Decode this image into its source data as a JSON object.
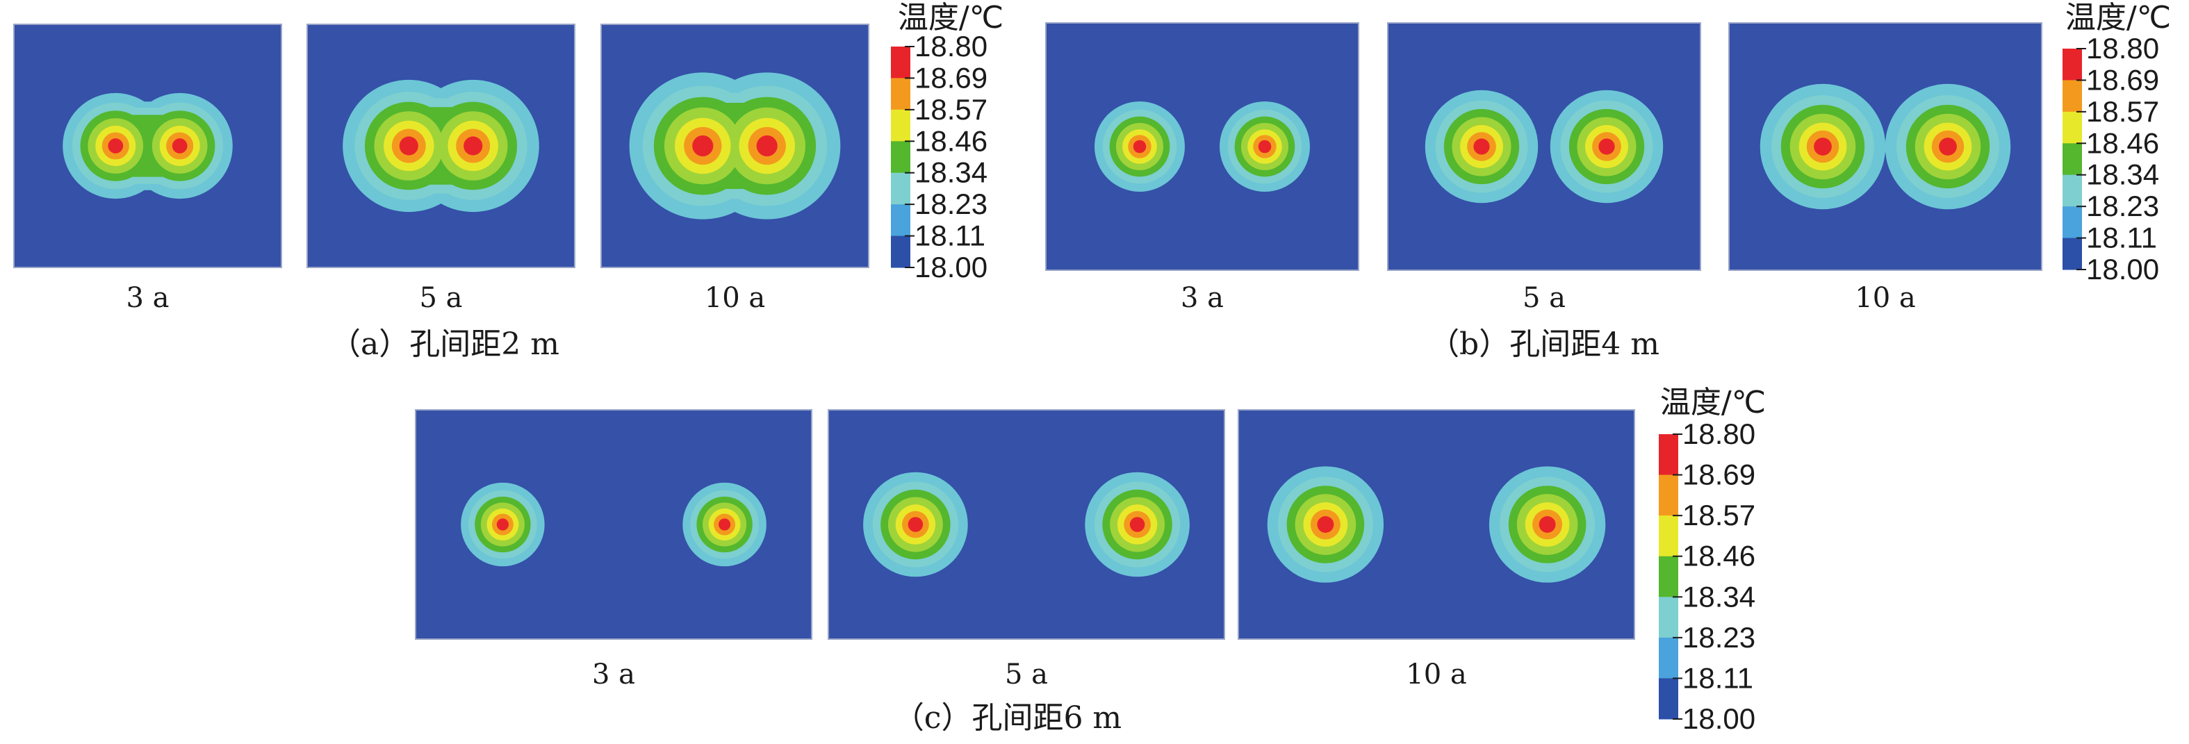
{
  "colorbar": {
    "unit_label": "温度/℃",
    "ticks": [
      "18.80",
      "18.69",
      "18.57",
      "18.46",
      "18.34",
      "18.23",
      "18.11",
      "18.00"
    ],
    "colors": [
      "#e8242b",
      "#f39a1e",
      "#e8e82a",
      "#54b72e",
      "#7ecfd0",
      "#4aa3dd",
      "#2c4fa8"
    ],
    "background": "#3551a8"
  },
  "chart_data": [
    {
      "type": "heatmap",
      "caption": "（a）孔间距2 m",
      "panel_labels": [
        "3 a",
        "5 a",
        "10 a"
      ],
      "spacing_m": 2,
      "years": [
        3,
        5,
        10
      ],
      "value_range": [
        18.0,
        18.8
      ],
      "unit": "℃"
    },
    {
      "type": "heatmap",
      "caption": "（b）孔间距4 m",
      "panel_labels": [
        "3 a",
        "5 a",
        "10 a"
      ],
      "spacing_m": 4,
      "years": [
        3,
        5,
        10
      ],
      "value_range": [
        18.0,
        18.8
      ],
      "unit": "℃"
    },
    {
      "type": "heatmap",
      "caption": "（c）孔间距6 m",
      "panel_labels": [
        "3 a",
        "5 a",
        "10 a"
      ],
      "spacing_m": 6,
      "years": [
        3,
        5,
        10
      ],
      "value_range": [
        18.0,
        18.8
      ],
      "unit": "℃"
    }
  ]
}
